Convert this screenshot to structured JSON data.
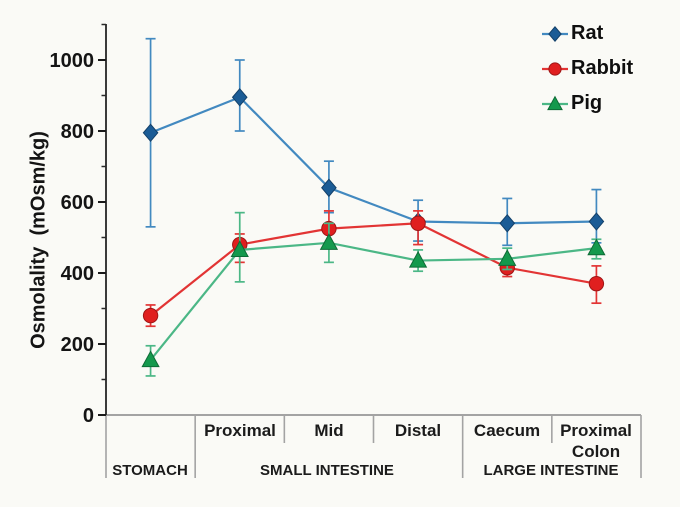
{
  "chart_data": {
    "type": "line",
    "title": "",
    "ylabel": "Osmolality  (mOsm/kg)",
    "xlabel": "",
    "unit": "mOsm/kg",
    "ylim": [
      0,
      1100
    ],
    "yticks": [
      0,
      200,
      400,
      600,
      800,
      1000
    ],
    "minor_yticks": [
      100,
      300,
      500,
      700,
      900,
      1100
    ],
    "grid": false,
    "legend_position": "top-right",
    "axis_color": "#a3a3a3",
    "yaxis_color": "#3a3a3a",
    "categories": [
      "Stomach",
      "Small intestine - Proximal",
      "Small intestine - Mid",
      "Small intestine - Distal",
      "Caecum",
      "Proximal Colon"
    ],
    "segment_labels": [
      "",
      "Proximal",
      "Mid",
      "Distal",
      "Caecum",
      "Proximal\nColon"
    ],
    "region_labels": [
      {
        "label": "STOMACH",
        "span": [
          0,
          1
        ]
      },
      {
        "label": "SMALL INTESTINE",
        "span": [
          1,
          4
        ]
      },
      {
        "label": "LARGE INTESTINE",
        "span": [
          4,
          6
        ]
      }
    ],
    "series": [
      {
        "name": "Rat",
        "marker": "diamond",
        "marker_color": "#1b5c96",
        "line_color": "#4289c0",
        "values": [
          795,
          895,
          640,
          545,
          540,
          545
        ],
        "err_up": [
          265,
          105,
          75,
          60,
          70,
          90
        ],
        "err_down": [
          265,
          95,
          70,
          55,
          62,
          60
        ]
      },
      {
        "name": "Rabbit",
        "marker": "circle",
        "marker_color": "#e01f1f",
        "line_color": "#e23434",
        "values": [
          280,
          480,
          525,
          540,
          415,
          370
        ],
        "err_up": [
          30,
          30,
          50,
          35,
          25,
          50
        ],
        "err_down": [
          30,
          50,
          50,
          60,
          25,
          55
        ]
      },
      {
        "name": "Pig",
        "marker": "triangle",
        "marker_color": "#14994d",
        "line_color": "#4bb786",
        "values": [
          155,
          465,
          485,
          435,
          440,
          470
        ],
        "err_up": [
          40,
          105,
          55,
          30,
          30,
          25
        ],
        "err_down": [
          45,
          90,
          55,
          30,
          30,
          30
        ]
      }
    ]
  }
}
